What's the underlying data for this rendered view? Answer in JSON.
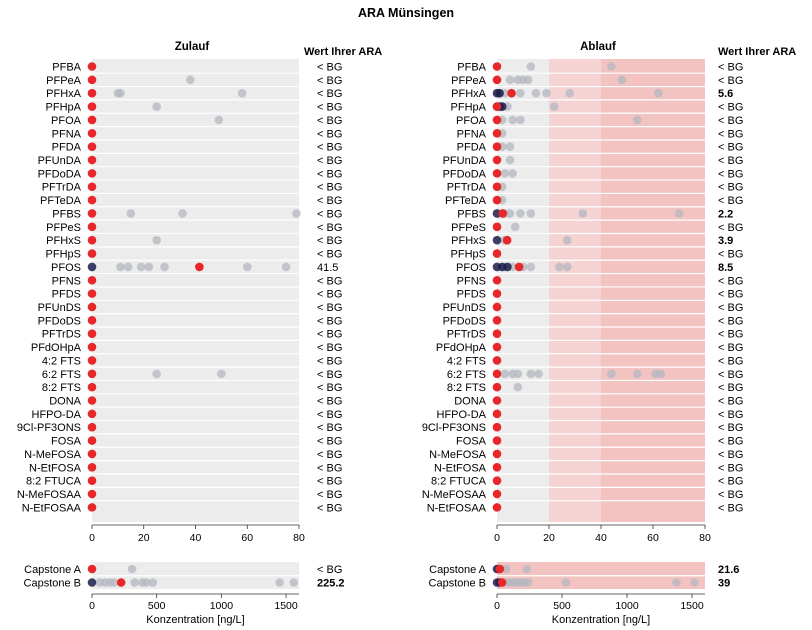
{
  "chart_data": {
    "type": "scatter",
    "title": "ARA Münsingen",
    "value_header": "Wert Ihrer ARA",
    "xlabel": "Konzentration [ng/L]",
    "colors": {
      "own": "#e8272a",
      "dark": "#1b1f4b",
      "other": "#b4b7c2",
      "bg": "#ececec",
      "band_mid": "#f4d3d2",
      "band_high": "#f3c3c2"
    },
    "substances": [
      "PFBA",
      "PFPeA",
      "PFHxA",
      "PFHpA",
      "PFOA",
      "PFNA",
      "PFDA",
      "PFUnDA",
      "PFDoDA",
      "PFTrDA",
      "PFTeDA",
      "PFBS",
      "PFPeS",
      "PFHxS",
      "PFHpS",
      "PFOS",
      "PFNS",
      "PFDS",
      "PFUnDS",
      "PFDoDS",
      "PFTrDS",
      "PFdOHpA",
      "4:2 FTS",
      "6:2 FTS",
      "8:2 FTS",
      "DONA",
      "HFPO-DA",
      "9Cl-PF3ONS",
      "FOSA",
      "N-MeFOSA",
      "N-EtFOSA",
      "8:2 FTUCA",
      "N-MeFOSAA",
      "N-EtFOSAA"
    ],
    "capstone_labels": [
      "Capstone A",
      "Capstone B"
    ],
    "panels": [
      {
        "title": "Zulauf",
        "xlim": [
          0,
          80
        ],
        "xticks": [
          0,
          20,
          40,
          60,
          80
        ],
        "cap_xlim": [
          0,
          1600
        ],
        "cap_xticks": [
          0,
          500,
          1000,
          1500
        ],
        "bands": [],
        "values": [
          "< BG",
          "< BG",
          "< BG",
          "< BG",
          "< BG",
          "< BG",
          "< BG",
          "< BG",
          "< BG",
          "< BG",
          "< BG",
          "< BG",
          "< BG",
          "< BG",
          "< BG",
          "41.5",
          "< BG",
          "< BG",
          "< BG",
          "< BG",
          "< BG",
          "< BG",
          "< BG",
          "< BG",
          "< BG",
          "< BG",
          "< BG",
          "< BG",
          "< BG",
          "< BG",
          "< BG",
          "< BG",
          "< BG",
          "< BG"
        ],
        "cap_values": [
          "< BG",
          "225.2"
        ],
        "own_x": [
          0,
          0,
          0,
          0,
          0,
          0,
          0,
          0,
          0,
          0,
          0,
          0,
          0,
          0,
          0,
          41.5,
          0,
          0,
          0,
          0,
          0,
          0,
          0,
          0,
          0,
          0,
          0,
          0,
          0,
          0,
          0,
          0,
          0,
          0
        ],
        "others": [
          [],
          [
            38
          ],
          [
            10,
            11,
            58
          ],
          [
            25
          ],
          [
            49
          ],
          [],
          [],
          [],
          [],
          [],
          [],
          [
            15,
            35,
            79
          ],
          [],
          [
            25
          ],
          [],
          [
            11,
            14,
            19,
            22,
            28,
            60,
            75
          ],
          [],
          [],
          [],
          [],
          [],
          [],
          [],
          [
            25,
            50
          ],
          [],
          [],
          [],
          [],
          [],
          [],
          [],
          [],
          [],
          []
        ],
        "dark": [
          [],
          [],
          [],
          [],
          [],
          [],
          [],
          [],
          [],
          [],
          [],
          [],
          [],
          [],
          [],
          [
            0
          ],
          [],
          [],
          [],
          [],
          [],
          [],
          [],
          [],
          [],
          [],
          [],
          [],
          [],
          [],
          [],
          [],
          [],
          []
        ],
        "cap_own": [
          0,
          225.2
        ],
        "cap_others": [
          [
            310
          ],
          [
            60,
            100,
            140,
            170,
            330,
            390,
            420,
            470,
            1450,
            1560
          ]
        ],
        "cap_dark": [
          [],
          [
            0
          ]
        ]
      },
      {
        "title": "Ablauf",
        "xlim": [
          0,
          80
        ],
        "xticks": [
          0,
          20,
          40,
          60,
          80
        ],
        "cap_xlim": [
          0,
          1600
        ],
        "cap_xticks": [
          0,
          500,
          1000,
          1500
        ],
        "bands": [
          {
            "from": 20,
            "to": 40,
            "color": "#f4d3d2"
          },
          {
            "from": 40,
            "to": 80,
            "color": "#f3c3c2"
          }
        ],
        "cap_bands": [
          {
            "from": 0,
            "to": 1600,
            "color": "#f3c3c2"
          }
        ],
        "values": [
          "< BG",
          "< BG",
          "5.6",
          "< BG",
          "< BG",
          "< BG",
          "< BG",
          "< BG",
          "< BG",
          "< BG",
          "< BG",
          "2.2",
          "< BG",
          "3.9",
          "< BG",
          "8.5",
          "< BG",
          "< BG",
          "< BG",
          "< BG",
          "< BG",
          "< BG",
          "< BG",
          "< BG",
          "< BG",
          "< BG",
          "< BG",
          "< BG",
          "< BG",
          "< BG",
          "< BG",
          "< BG",
          "< BG",
          "< BG"
        ],
        "value_bold": [
          false,
          false,
          true,
          false,
          false,
          false,
          false,
          false,
          false,
          false,
          false,
          true,
          false,
          true,
          false,
          true,
          false,
          false,
          false,
          false,
          false,
          false,
          false,
          false,
          false,
          false,
          false,
          false,
          false,
          false,
          false,
          false,
          false,
          false
        ],
        "cap_values": [
          "21.6",
          "39"
        ],
        "own_x": [
          0,
          0,
          5.6,
          0,
          0,
          0,
          0,
          0,
          0,
          0,
          0,
          2.2,
          0,
          3.9,
          0,
          8.5,
          0,
          0,
          0,
          0,
          0,
          0,
          0,
          0,
          0,
          0,
          0,
          0,
          0,
          0,
          0,
          0,
          0,
          0
        ],
        "others": [
          [
            13,
            44
          ],
          [
            5,
            8,
            10,
            12,
            48
          ],
          [
            1,
            3,
            9,
            15,
            19,
            28,
            62
          ],
          [
            2,
            4,
            22
          ],
          [
            2,
            6,
            9,
            54
          ],
          [
            2
          ],
          [
            2,
            5
          ],
          [
            5
          ],
          [
            3,
            6
          ],
          [
            2
          ],
          [
            2
          ],
          [
            3,
            5,
            9,
            13,
            33,
            70
          ],
          [
            7
          ],
          [
            3,
            27
          ],
          [],
          [
            3,
            6,
            10,
            13,
            24,
            27
          ],
          [],
          [],
          [],
          [],
          [],
          [],
          [],
          [
            3,
            6,
            8,
            13,
            16,
            44,
            54,
            61,
            63
          ],
          [
            8
          ],
          [],
          [],
          [],
          [],
          [],
          [],
          [],
          [],
          []
        ],
        "dark": [
          [],
          [],
          [
            0,
            1
          ],
          [
            0,
            1,
            2
          ],
          [],
          [],
          [],
          [],
          [],
          [],
          [],
          [
            0
          ],
          [],
          [
            0
          ],
          [],
          [
            0,
            2,
            4
          ],
          [],
          [],
          [],
          [],
          [],
          [],
          [],
          [],
          [],
          [],
          [],
          [],
          [],
          [],
          [],
          [],
          [],
          []
        ],
        "cap_own": [
          21.6,
          39
        ],
        "cap_others": [
          [
            10,
            30,
            70,
            230
          ],
          [
            60,
            90,
            120,
            150,
            180,
            210,
            240,
            530,
            1380,
            1520
          ]
        ],
        "cap_dark": [
          [
            0
          ],
          [
            0,
            20
          ]
        ]
      }
    ]
  }
}
